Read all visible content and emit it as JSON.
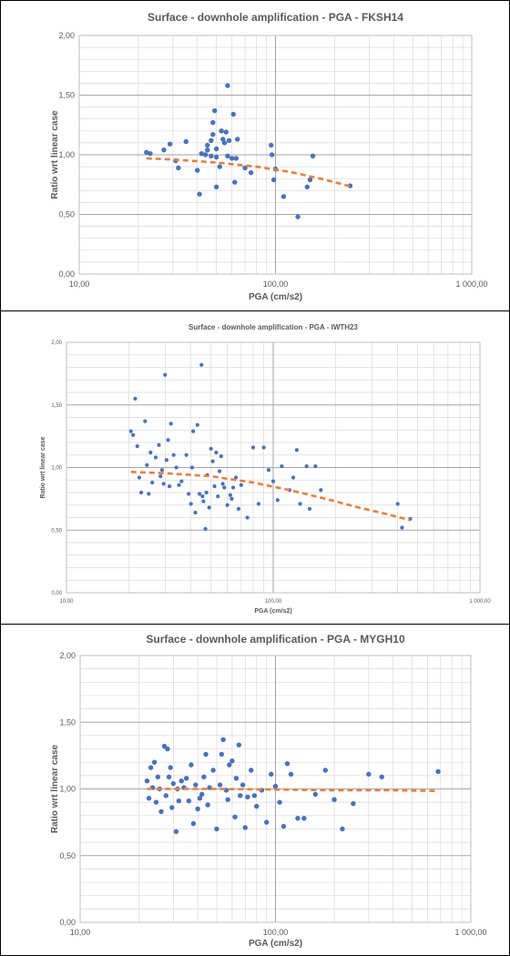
{
  "chart_data": [
    {
      "type": "scatter",
      "title": "Surface - downhole amplification - PGA - FKSH14",
      "xlabel": "PGA (cm/s2)",
      "ylabel": "Ratio wrt linear case",
      "x_scale": "log",
      "xlim": [
        10,
        1000
      ],
      "ylim": [
        0,
        2
      ],
      "x_ticks": [
        "10,00",
        "100,00",
        "1 000,00"
      ],
      "y_ticks": [
        "0,00",
        "0,50",
        "1,00",
        "1,50",
        "2,00"
      ],
      "points_color": "#4472c4",
      "trend_color": "#ed7d31",
      "series": [
        {
          "kind": "points",
          "x": [
            22,
            23,
            27,
            29,
            31,
            32,
            35,
            40,
            41,
            42,
            44,
            45,
            45,
            47,
            47,
            48,
            48,
            49,
            50,
            50,
            50,
            52,
            53,
            54,
            55,
            56,
            57,
            57,
            58,
            60,
            61,
            62,
            63,
            64,
            70,
            75,
            95,
            96,
            98,
            100,
            110,
            130,
            145,
            150,
            155,
            240
          ],
          "y": [
            1.02,
            1.01,
            1.04,
            1.09,
            0.95,
            0.89,
            1.11,
            0.87,
            0.67,
            1.01,
            1.0,
            1.08,
            1.04,
            1.12,
            0.99,
            1.17,
            1.27,
            1.37,
            1.05,
            0.98,
            0.73,
            0.9,
            1.2,
            1.13,
            1.1,
            1.19,
            1.58,
            0.99,
            1.12,
            0.97,
            1.34,
            0.77,
            0.97,
            1.13,
            0.89,
            0.85,
            1.08,
            1.0,
            0.79,
            0.88,
            0.65,
            0.48,
            0.73,
            0.79,
            0.99,
            0.74
          ]
        },
        {
          "kind": "trend",
          "x": [
            22,
            30,
            50,
            80,
            120,
            180,
            240
          ],
          "y": [
            0.97,
            0.96,
            0.935,
            0.9,
            0.855,
            0.79,
            0.735
          ]
        }
      ]
    },
    {
      "type": "scatter",
      "title": "Surface - downhole amplification - PGA - IWTH23",
      "xlabel": "PGA (cm/s2)",
      "ylabel": "Ratio wrt linear case",
      "x_scale": "log",
      "xlim": [
        10,
        1000
      ],
      "ylim": [
        0,
        2
      ],
      "x_ticks": [
        "10,00",
        "100,00",
        "1 000,00"
      ],
      "y_ticks": [
        "0,00",
        "0,50",
        "1,00",
        "1,50",
        "2,00"
      ],
      "points_color": "#4472c4",
      "trend_color": "#ed7d31",
      "series": [
        {
          "kind": "points",
          "x": [
            20.5,
            21,
            21.5,
            22,
            22.5,
            23,
            24,
            24.5,
            25,
            25.5,
            26,
            27,
            28,
            28.5,
            29,
            29.5,
            30,
            30.5,
            31,
            31.5,
            32,
            33,
            34,
            35,
            36,
            38,
            39,
            40,
            40.5,
            41,
            42,
            43,
            44,
            45,
            45.5,
            46,
            47,
            47.5,
            48,
            49,
            50,
            51,
            52,
            53,
            54,
            55,
            56,
            57,
            58,
            60,
            62,
            63,
            64,
            66,
            68,
            70,
            75,
            80,
            85,
            90,
            95,
            100,
            105,
            110,
            120,
            125,
            130,
            135,
            145,
            150,
            160,
            170,
            400,
            420,
            460
          ],
          "y": [
            1.29,
            1.26,
            1.55,
            1.17,
            0.92,
            0.8,
            1.37,
            1.02,
            0.79,
            1.12,
            0.88,
            1.08,
            1.18,
            0.93,
            0.98,
            0.87,
            1.74,
            1.06,
            1.22,
            0.85,
            1.35,
            1.1,
            1.0,
            0.86,
            0.89,
            1.1,
            0.79,
            0.71,
            1.0,
            1.29,
            0.64,
            1.34,
            0.79,
            1.82,
            0.77,
            0.73,
            0.51,
            0.8,
            0.94,
            0.68,
            1.15,
            1.05,
            0.85,
            1.12,
            0.77,
            0.97,
            1.09,
            0.87,
            0.84,
            0.7,
            0.78,
            0.75,
            0.84,
            0.92,
            0.67,
            0.86,
            0.6,
            1.16,
            0.71,
            1.16,
            0.98,
            0.89,
            0.74,
            1.01,
            0.82,
            0.92,
            1.14,
            0.71,
            1.01,
            0.67,
            1.01,
            0.82,
            0.71,
            0.52,
            0.59
          ]
        },
        {
          "kind": "trend",
          "x": [
            20.5,
            30,
            50,
            80,
            120,
            180,
            260,
            350,
            460
          ],
          "y": [
            0.965,
            0.955,
            0.93,
            0.88,
            0.82,
            0.75,
            0.68,
            0.63,
            0.58
          ]
        }
      ]
    },
    {
      "type": "scatter",
      "title": "Surface - downhole amplification - PGA - MYGH10",
      "xlabel": "PGA (cm/s2)",
      "ylabel": "Ratio wrt linear case",
      "x_scale": "log",
      "xlim": [
        10,
        1000
      ],
      "ylim": [
        0,
        2
      ],
      "x_ticks": [
        "10,00",
        "100,00",
        "1 000,00"
      ],
      "y_ticks": [
        "0,00",
        "0,50",
        "1,00",
        "1,50",
        "2,00"
      ],
      "points_color": "#4472c4",
      "trend_color": "#ed7d31",
      "series": [
        {
          "kind": "points",
          "x": [
            22,
            22.5,
            23,
            23.5,
            24,
            24.5,
            25,
            25.5,
            26,
            27,
            27.5,
            28,
            28.5,
            29,
            29.5,
            30,
            31,
            31.5,
            32,
            33,
            34,
            35,
            36,
            37,
            38,
            39,
            40,
            41,
            42,
            43,
            44,
            45,
            46,
            48,
            50,
            52,
            53,
            54,
            56,
            57,
            58,
            60,
            62,
            63,
            65,
            66,
            68,
            70,
            72,
            75,
            78,
            80,
            85,
            90,
            95,
            100,
            105,
            110,
            115,
            120,
            130,
            140,
            160,
            180,
            200,
            220,
            250,
            300,
            350,
            680
          ],
          "y": [
            1.06,
            0.93,
            1.16,
            1.01,
            1.2,
            0.9,
            1.09,
            1.0,
            0.83,
            1.32,
            0.95,
            1.3,
            1.09,
            1.16,
            0.86,
            1.04,
            0.68,
            1.0,
            0.91,
            1.06,
            1.01,
            1.08,
            0.91,
            1.18,
            0.74,
            1.03,
            0.85,
            0.93,
            0.96,
            1.09,
            1.26,
            0.88,
            1.01,
            1.14,
            0.7,
            1.03,
            1.26,
            1.37,
            0.99,
            0.92,
            1.18,
            1.21,
            0.79,
            1.08,
            1.33,
            0.95,
            1.03,
            0.71,
            0.94,
            1.14,
            0.95,
            0.87,
            0.99,
            0.75,
            1.11,
            1.02,
            0.9,
            0.72,
            1.19,
            1.11,
            0.78,
            0.78,
            0.96,
            1.14,
            0.92,
            0.7,
            0.89,
            1.11,
            1.09,
            1.13
          ]
        },
        {
          "kind": "trend",
          "x": [
            22,
            50,
            100,
            200,
            400,
            680
          ],
          "y": [
            1.0,
            1.0,
            0.995,
            0.99,
            0.99,
            0.985
          ]
        }
      ]
    }
  ]
}
